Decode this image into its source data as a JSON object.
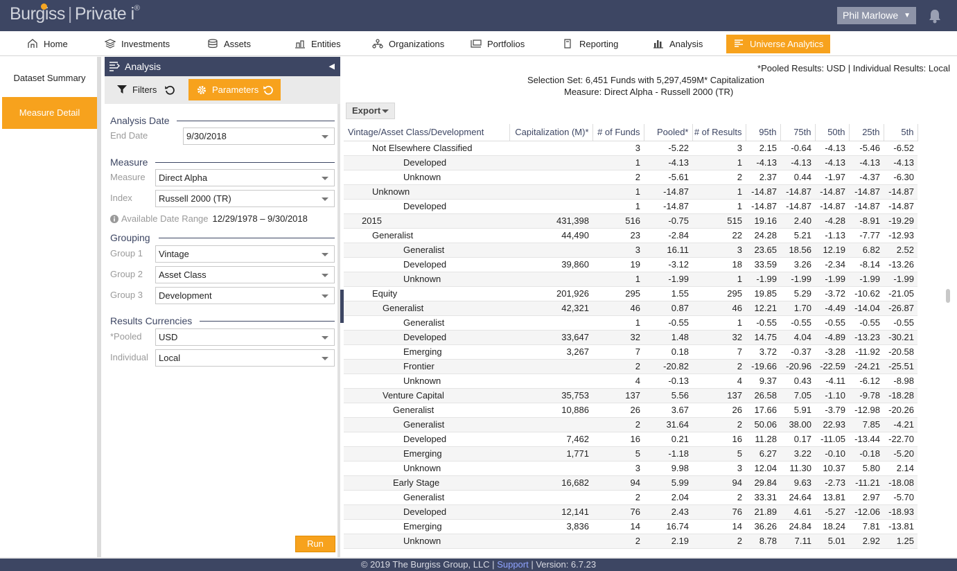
{
  "brand": {
    "name1": "Burg",
    "name2": "ss",
    "sep": "|",
    "product": "Private i",
    "mark": "®"
  },
  "user": {
    "name": "Phil Marlowe"
  },
  "nav": {
    "items": [
      {
        "label": "Home",
        "icon": "home-icon"
      },
      {
        "label": "Investments",
        "icon": "investments-icon"
      },
      {
        "label": "Assets",
        "icon": "assets-icon"
      },
      {
        "label": "Entities",
        "icon": "entities-icon"
      },
      {
        "label": "Organizations",
        "icon": "organizations-icon"
      },
      {
        "label": "Portfolios",
        "icon": "portfolios-icon"
      },
      {
        "label": "Reporting",
        "icon": "reporting-icon"
      },
      {
        "label": "Analysis",
        "icon": "bar-chart-icon"
      },
      {
        "label": "Universe Analytics",
        "icon": "universe-analytics-icon"
      }
    ]
  },
  "sidenav": {
    "items": [
      {
        "label": "Dataset Summary"
      },
      {
        "label": "Measure Detail"
      }
    ]
  },
  "panel": {
    "title": "Analysis",
    "filters_label": "Filters",
    "parameters_label": "Parameters",
    "analysis_date": {
      "title": "Analysis Date",
      "end_date_label": "End Date",
      "end_date": "9/30/2018"
    },
    "measure": {
      "title": "Measure",
      "measure_label": "Measure",
      "measure_value": "Direct Alpha",
      "index_label": "Index",
      "index_value": "Russell 2000 (TR)",
      "range_label": "Available Date Range",
      "range_value": "12/29/1978  –  9/30/2018"
    },
    "grouping": {
      "title": "Grouping",
      "g1_label": "Group 1",
      "g1_value": "Vintage",
      "g2_label": "Group 2",
      "g2_value": "Asset Class",
      "g3_label": "Group 3",
      "g3_value": "Development"
    },
    "currencies": {
      "title": "Results Currencies",
      "pooled_label": "*Pooled",
      "pooled_value": "USD",
      "individual_label": "Individual",
      "individual_value": "Local"
    },
    "run_label": "Run"
  },
  "main": {
    "pooled_note": "*Pooled Results: USD | Individual Results: Local",
    "selection": "Selection Set: 6,451 Funds with 5,297,459M* Capitalization",
    "measure_line": "Measure: Direct Alpha - Russell 2000 (TR)",
    "export_label": "Export"
  },
  "table": {
    "columns": [
      "Vintage/Asset Class/Development",
      "Capitalization (M)*",
      "# of Funds",
      "Pooled*",
      "# of Results",
      "95th",
      "75th",
      "50th",
      "25th",
      "5th"
    ],
    "rows": [
      {
        "level": 2,
        "name": "Not Elsewhere Classified",
        "cap": "",
        "funds": "3",
        "pooled": "-5.22",
        "results": "3",
        "p95": "2.15",
        "p75": "-0.64",
        "p50": "-4.13",
        "p25": "-5.46",
        "p5": "-6.52"
      },
      {
        "level": 5,
        "name": "Developed",
        "cap": "",
        "funds": "1",
        "pooled": "-4.13",
        "results": "1",
        "p95": "-4.13",
        "p75": "-4.13",
        "p50": "-4.13",
        "p25": "-4.13",
        "p5": "-4.13"
      },
      {
        "level": 5,
        "name": "Unknown",
        "cap": "",
        "funds": "2",
        "pooled": "-5.61",
        "results": "2",
        "p95": "2.37",
        "p75": "0.44",
        "p50": "-1.97",
        "p25": "-4.37",
        "p5": "-6.30"
      },
      {
        "level": 2,
        "name": "Unknown",
        "cap": "",
        "funds": "1",
        "pooled": "-14.87",
        "results": "1",
        "p95": "-14.87",
        "p75": "-14.87",
        "p50": "-14.87",
        "p25": "-14.87",
        "p5": "-14.87"
      },
      {
        "level": 5,
        "name": "Developed",
        "cap": "",
        "funds": "1",
        "pooled": "-14.87",
        "results": "1",
        "p95": "-14.87",
        "p75": "-14.87",
        "p50": "-14.87",
        "p25": "-14.87",
        "p5": "-14.87"
      },
      {
        "level": 1,
        "name": "2015",
        "cap": "431,398",
        "funds": "516",
        "pooled": "-0.75",
        "results": "515",
        "p95": "19.16",
        "p75": "2.40",
        "p50": "-4.28",
        "p25": "-8.91",
        "p5": "-19.29"
      },
      {
        "level": 2,
        "name": "Generalist",
        "cap": "44,490",
        "funds": "23",
        "pooled": "-2.84",
        "results": "22",
        "p95": "24.28",
        "p75": "5.21",
        "p50": "-1.13",
        "p25": "-7.77",
        "p5": "-12.93"
      },
      {
        "level": 5,
        "name": "Generalist",
        "cap": "",
        "funds": "3",
        "pooled": "16.11",
        "results": "3",
        "p95": "23.65",
        "p75": "18.56",
        "p50": "12.19",
        "p25": "6.82",
        "p5": "2.52"
      },
      {
        "level": 5,
        "name": "Developed",
        "cap": "39,860",
        "funds": "19",
        "pooled": "-3.12",
        "results": "18",
        "p95": "33.59",
        "p75": "3.26",
        "p50": "-2.34",
        "p25": "-8.14",
        "p5": "-13.26"
      },
      {
        "level": 5,
        "name": "Unknown",
        "cap": "",
        "funds": "1",
        "pooled": "-1.99",
        "results": "1",
        "p95": "-1.99",
        "p75": "-1.99",
        "p50": "-1.99",
        "p25": "-1.99",
        "p5": "-1.99"
      },
      {
        "level": 2,
        "name": "Equity",
        "cap": "201,926",
        "funds": "295",
        "pooled": "1.55",
        "results": "295",
        "p95": "19.85",
        "p75": "5.29",
        "p50": "-3.72",
        "p25": "-10.62",
        "p5": "-21.05"
      },
      {
        "level": 3,
        "name": "Generalist",
        "cap": "42,321",
        "funds": "46",
        "pooled": "0.87",
        "results": "46",
        "p95": "12.21",
        "p75": "1.70",
        "p50": "-4.49",
        "p25": "-14.04",
        "p5": "-26.87"
      },
      {
        "level": 5,
        "name": "Generalist",
        "cap": "",
        "funds": "1",
        "pooled": "-0.55",
        "results": "1",
        "p95": "-0.55",
        "p75": "-0.55",
        "p50": "-0.55",
        "p25": "-0.55",
        "p5": "-0.55"
      },
      {
        "level": 5,
        "name": "Developed",
        "cap": "33,647",
        "funds": "32",
        "pooled": "1.48",
        "results": "32",
        "p95": "14.75",
        "p75": "4.04",
        "p50": "-4.89",
        "p25": "-13.23",
        "p5": "-30.21"
      },
      {
        "level": 5,
        "name": "Emerging",
        "cap": "3,267",
        "funds": "7",
        "pooled": "0.18",
        "results": "7",
        "p95": "3.72",
        "p75": "-0.37",
        "p50": "-3.28",
        "p25": "-11.92",
        "p5": "-20.58"
      },
      {
        "level": 5,
        "name": "Frontier",
        "cap": "",
        "funds": "2",
        "pooled": "-20.82",
        "results": "2",
        "p95": "-19.66",
        "p75": "-20.96",
        "p50": "-22.59",
        "p25": "-24.21",
        "p5": "-25.51"
      },
      {
        "level": 5,
        "name": "Unknown",
        "cap": "",
        "funds": "4",
        "pooled": "-0.13",
        "results": "4",
        "p95": "9.37",
        "p75": "0.43",
        "p50": "-4.11",
        "p25": "-6.12",
        "p5": "-8.98"
      },
      {
        "level": 3,
        "name": "Venture Capital",
        "cap": "35,753",
        "funds": "137",
        "pooled": "5.56",
        "results": "137",
        "p95": "26.58",
        "p75": "7.05",
        "p50": "-1.10",
        "p25": "-9.78",
        "p5": "-18.28"
      },
      {
        "level": 4,
        "name": "Generalist",
        "cap": "10,886",
        "funds": "26",
        "pooled": "3.67",
        "results": "26",
        "p95": "17.66",
        "p75": "5.91",
        "p50": "-3.79",
        "p25": "-12.98",
        "p5": "-20.26"
      },
      {
        "level": 5,
        "name": "Generalist",
        "cap": "",
        "funds": "2",
        "pooled": "31.64",
        "results": "2",
        "p95": "50.06",
        "p75": "38.00",
        "p50": "22.93",
        "p25": "7.85",
        "p5": "-4.21"
      },
      {
        "level": 5,
        "name": "Developed",
        "cap": "7,462",
        "funds": "16",
        "pooled": "0.21",
        "results": "16",
        "p95": "11.28",
        "p75": "0.17",
        "p50": "-11.05",
        "p25": "-13.44",
        "p5": "-22.70"
      },
      {
        "level": 5,
        "name": "Emerging",
        "cap": "1,771",
        "funds": "5",
        "pooled": "-1.18",
        "results": "5",
        "p95": "6.27",
        "p75": "3.22",
        "p50": "-0.10",
        "p25": "-0.18",
        "p5": "-5.20"
      },
      {
        "level": 5,
        "name": "Unknown",
        "cap": "",
        "funds": "3",
        "pooled": "9.98",
        "results": "3",
        "p95": "12.04",
        "p75": "11.30",
        "p50": "10.37",
        "p25": "5.80",
        "p5": "2.14"
      },
      {
        "level": 4,
        "name": "Early Stage",
        "cap": "16,682",
        "funds": "94",
        "pooled": "5.99",
        "results": "94",
        "p95": "29.84",
        "p75": "9.63",
        "p50": "-2.73",
        "p25": "-11.21",
        "p5": "-18.08"
      },
      {
        "level": 5,
        "name": "Generalist",
        "cap": "",
        "funds": "2",
        "pooled": "2.04",
        "results": "2",
        "p95": "33.31",
        "p75": "24.64",
        "p50": "13.81",
        "p25": "2.97",
        "p5": "-5.70"
      },
      {
        "level": 5,
        "name": "Developed",
        "cap": "12,141",
        "funds": "76",
        "pooled": "2.43",
        "results": "76",
        "p95": "21.89",
        "p75": "4.61",
        "p50": "-5.27",
        "p25": "-12.06",
        "p5": "-18.93"
      },
      {
        "level": 5,
        "name": "Emerging",
        "cap": "3,836",
        "funds": "14",
        "pooled": "16.74",
        "results": "14",
        "p95": "36.26",
        "p75": "24.84",
        "p50": "18.24",
        "p25": "7.81",
        "p5": "-13.81"
      },
      {
        "level": 5,
        "name": "Unknown",
        "cap": "",
        "funds": "2",
        "pooled": "2.19",
        "results": "2",
        "p95": "8.78",
        "p75": "7.11",
        "p50": "5.01",
        "p25": "2.92",
        "p5": "1.25"
      }
    ]
  },
  "footer": {
    "copyright": "© 2019 The Burgiss Group, LLC |",
    "support": "Support",
    "version": "| Version: 6.7.23"
  }
}
